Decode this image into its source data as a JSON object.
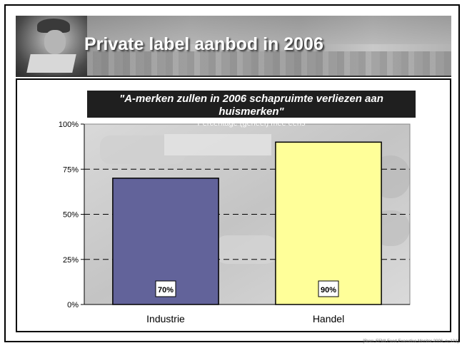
{
  "header": {
    "title": "Private label aanbod in 2006"
  },
  "chart_data": {
    "type": "bar",
    "title": "\"A-merken zullen in 2006 schapruimte verliezen aan huismerken\"",
    "subtitle": "Percentage (geheel) mee eens",
    "categories": [
      "Industrie",
      "Handel"
    ],
    "values": [
      70,
      90
    ],
    "value_labels": [
      "70%",
      "90%"
    ],
    "ylim": [
      0,
      100
    ],
    "yticks": [
      0,
      25,
      50,
      75,
      100
    ],
    "ytick_labels": [
      "0%",
      "25%",
      "50%",
      "75%",
      "100%"
    ],
    "grid": true,
    "grid_style": "dashed",
    "colors": [
      "#62639a",
      "#ffff99"
    ]
  },
  "source": "[Bron: EFMI Food Executive Monitor 2006, n=124]"
}
